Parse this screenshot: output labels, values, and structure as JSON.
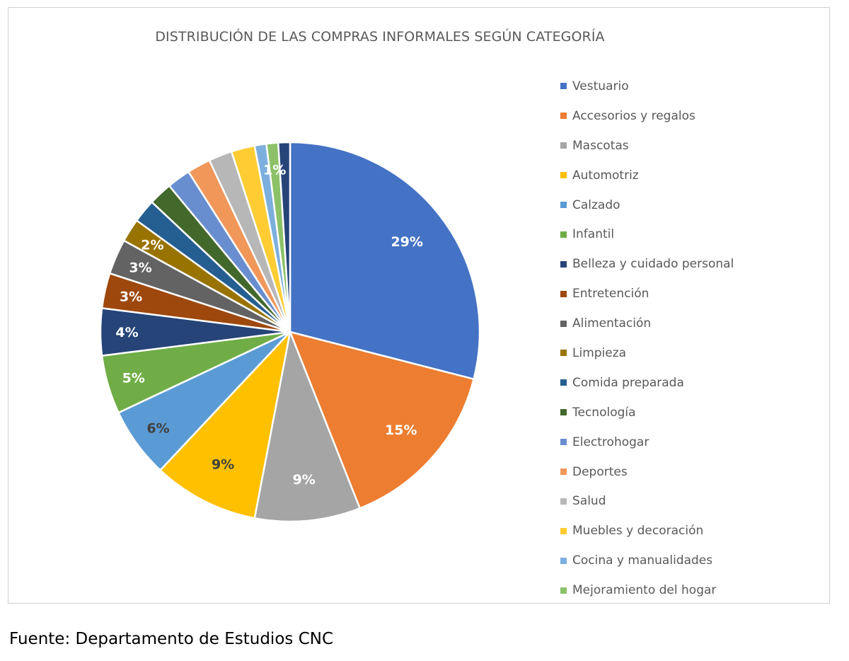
{
  "chart_data": {
    "type": "pie",
    "title": "DISTRIBUCIÓN DE LAS COMPRAS INFORMALES SEGÚN CATEGORÍA",
    "legend_position": "right",
    "slices": [
      {
        "label": "Vestuario",
        "value": 29,
        "data_label": "29%",
        "color": "#4472C4",
        "label_color": "#FFFFFF"
      },
      {
        "label": "Accesorios y regalos",
        "value": 15,
        "data_label": "15%",
        "color": "#ED7D31",
        "label_color": "#FFFFFF"
      },
      {
        "label": "Mascotas",
        "value": 9,
        "data_label": "9%",
        "color": "#A5A5A5",
        "label_color": "#FFFFFF"
      },
      {
        "label": "Automotriz",
        "value": 9,
        "data_label": "9%",
        "color": "#FFC000",
        "label_color": "#404040"
      },
      {
        "label": "Calzado",
        "value": 6,
        "data_label": "6%",
        "color": "#5B9BD5",
        "label_color": "#404040"
      },
      {
        "label": "Infantil",
        "value": 5,
        "data_label": "5%",
        "color": "#70AD47",
        "label_color": "#FFFFFF"
      },
      {
        "label": "Belleza y cuidado personal",
        "value": 4,
        "data_label": "4%",
        "color": "#264478",
        "label_color": "#FFFFFF"
      },
      {
        "label": "Entretención",
        "value": 3,
        "data_label": "3%",
        "color": "#9E480E",
        "label_color": "#FFFFFF"
      },
      {
        "label": "Alimentación",
        "value": 3,
        "data_label": "3%",
        "color": "#636363",
        "label_color": "#FFFFFF"
      },
      {
        "label": "Limpieza",
        "value": 2,
        "data_label": "2%",
        "color": "#997300",
        "label_color": "#FFFFFF"
      },
      {
        "label": "Comida preparada",
        "value": 2,
        "data_label": "",
        "color": "#255E91",
        "label_color": "#FFFFFF"
      },
      {
        "label": "Tecnología",
        "value": 2,
        "data_label": "",
        "color": "#43682B",
        "label_color": "#FFFFFF"
      },
      {
        "label": "Electrohogar",
        "value": 2,
        "data_label": "",
        "color": "#698ED0",
        "label_color": "#FFFFFF"
      },
      {
        "label": "Deportes",
        "value": 2,
        "data_label": "",
        "color": "#F1975A",
        "label_color": "#FFFFFF"
      },
      {
        "label": "Salud",
        "value": 2,
        "data_label": "",
        "color": "#B7B7B7",
        "label_color": "#FFFFFF"
      },
      {
        "label": "Muebles y decoración",
        "value": 2,
        "data_label": "",
        "color": "#FFCD33",
        "label_color": "#FFFFFF"
      },
      {
        "label": "Cocina y manualidades",
        "value": 1,
        "data_label": "",
        "color": "#7CAFDD",
        "label_color": "#FFFFFF"
      },
      {
        "label": "Mejoramiento del hogar",
        "value": 1,
        "data_label": "1%",
        "color": "#8CC168",
        "label_color": "#FFFFFF"
      },
      {
        "label": "",
        "value": 1,
        "data_label": "",
        "color": "#264478",
        "label_color": "#FFFFFF"
      }
    ]
  },
  "source_note": "Fuente: Departamento de Estudios CNC"
}
